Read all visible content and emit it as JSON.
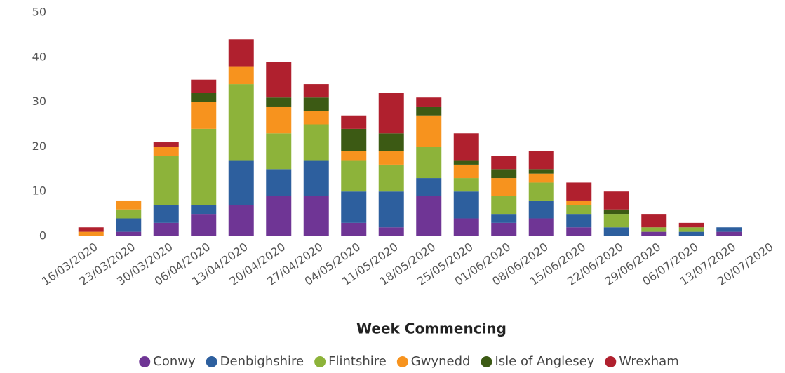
{
  "chart_data": {
    "type": "stacked_bar",
    "x_label": "Week Commencing",
    "categories": [
      "16/03/2020",
      "23/03/2020",
      "30/03/2020",
      "06/04/2020",
      "13/04/2020",
      "20/04/2020",
      "27/04/2020",
      "04/05/2020",
      "11/05/2020",
      "18/05/2020",
      "25/05/2020",
      "01/06/2020",
      "08/06/2020",
      "15/06/2020",
      "22/06/2020",
      "29/06/2020",
      "06/07/2020",
      "13/07/2020",
      "20/07/2020"
    ],
    "series": [
      {
        "name": "Conwy",
        "color": "#6f3595",
        "values": [
          0,
          1,
          3,
          5,
          7,
          9,
          9,
          3,
          2,
          9,
          4,
          3,
          4,
          2,
          0,
          1,
          0,
          1,
          0
        ]
      },
      {
        "name": "Denbighshire",
        "color": "#2d5f9e",
        "values": [
          0,
          3,
          4,
          2,
          10,
          6,
          8,
          7,
          8,
          4,
          6,
          2,
          4,
          3,
          2,
          0,
          1,
          1,
          0
        ]
      },
      {
        "name": "Flintshire",
        "color": "#8db33a",
        "values": [
          0,
          2,
          11,
          17,
          17,
          8,
          8,
          7,
          6,
          7,
          3,
          4,
          4,
          2,
          3,
          1,
          1,
          0,
          0
        ]
      },
      {
        "name": "Gwynedd",
        "color": "#f7931e",
        "values": [
          1,
          2,
          2,
          6,
          4,
          6,
          3,
          2,
          3,
          7,
          3,
          4,
          2,
          1,
          0,
          0,
          0,
          0,
          0
        ]
      },
      {
        "name": "Isle of Anglesey",
        "color": "#3c5a14",
        "values": [
          0,
          0,
          0,
          2,
          0,
          2,
          3,
          5,
          4,
          2,
          1,
          2,
          1,
          0,
          1,
          0,
          0,
          0,
          0
        ]
      },
      {
        "name": "Wrexham",
        "color": "#b0202e",
        "values": [
          1,
          0,
          1,
          3,
          6,
          8,
          3,
          3,
          9,
          2,
          6,
          3,
          4,
          4,
          4,
          3,
          1,
          0,
          0
        ]
      }
    ],
    "ylim": [
      0,
      50
    ],
    "yticks": [
      0,
      10,
      20,
      30,
      40,
      50
    ],
    "grid": false,
    "legend": "bottom"
  }
}
